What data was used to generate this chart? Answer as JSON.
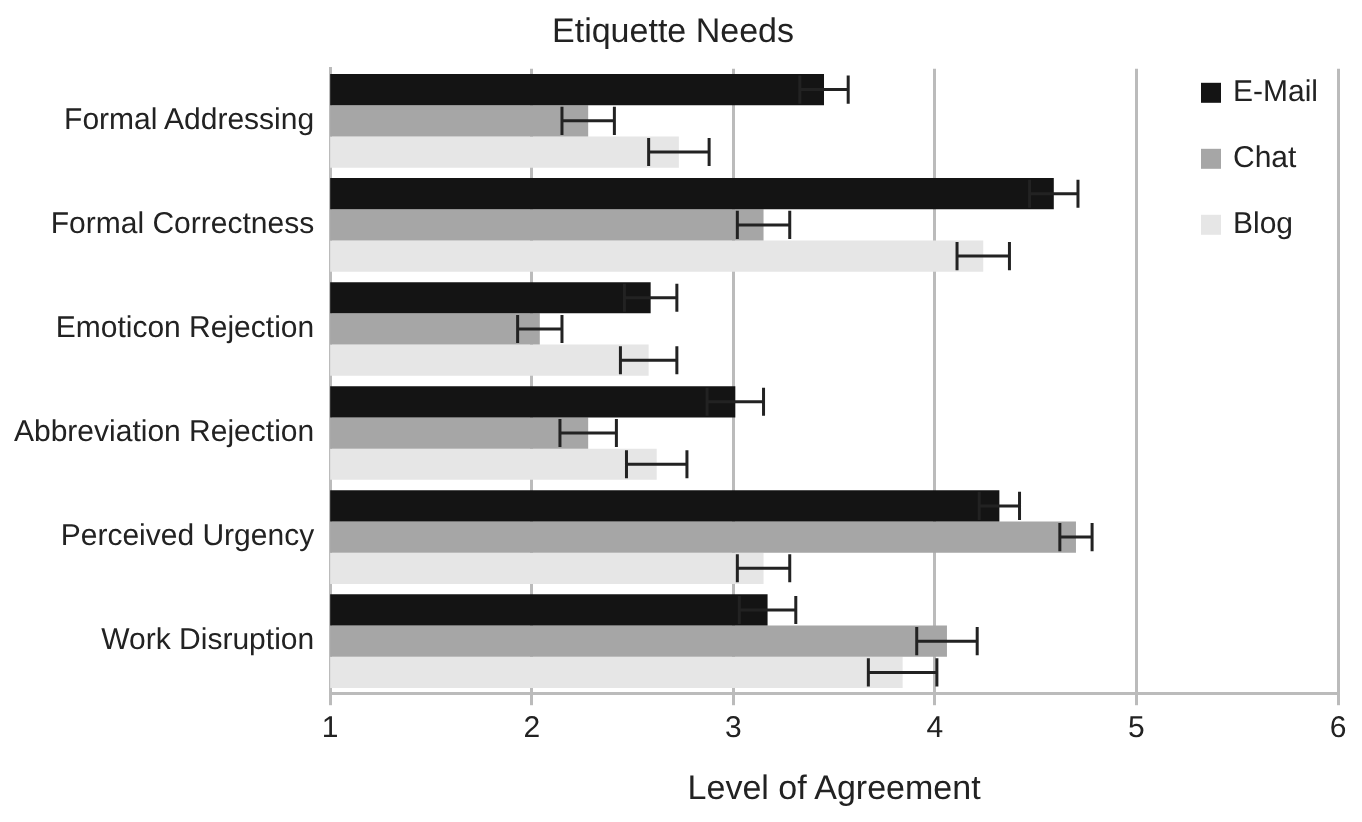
{
  "chart_data": {
    "type": "bar",
    "orientation": "horizontal",
    "title": "Etiquette Needs",
    "xlabel": "Level of Agreement",
    "categories": [
      "Formal Addressing",
      "Formal Correctness",
      "Emoticon Rejection",
      "Abbreviation Rejection",
      "Perceived Urgency",
      "Work Disruption"
    ],
    "series": [
      {
        "name": "E-Mail",
        "color": "#141414",
        "values": [
          3.45,
          4.59,
          2.59,
          3.01,
          4.32,
          3.17
        ],
        "errors": [
          0.12,
          0.12,
          0.13,
          0.14,
          0.1,
          0.14
        ]
      },
      {
        "name": "Chat",
        "color": "#a6a6a6",
        "values": [
          2.28,
          3.15,
          2.04,
          2.28,
          4.7,
          4.06
        ],
        "errors": [
          0.13,
          0.13,
          0.11,
          0.14,
          0.08,
          0.15
        ]
      },
      {
        "name": "Blog",
        "color": "#e6e6e6",
        "values": [
          2.73,
          4.24,
          2.58,
          2.62,
          3.15,
          3.84
        ],
        "errors": [
          0.15,
          0.13,
          0.14,
          0.15,
          0.13,
          0.17
        ]
      }
    ],
    "xlim": [
      1,
      6
    ],
    "xticks": [
      1,
      2,
      3,
      4,
      5,
      6
    ],
    "grid": "x",
    "legend": "top right"
  }
}
